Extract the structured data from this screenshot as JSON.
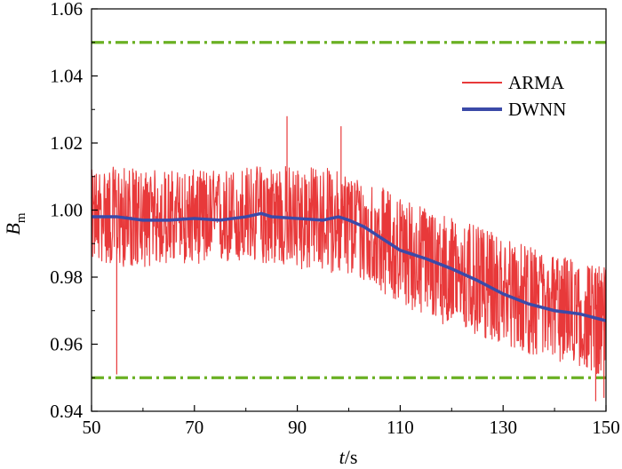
{
  "chart_data": {
    "type": "line",
    "xlabel": {
      "italic": "t",
      "rest": "/s"
    },
    "ylabel": {
      "main": "B",
      "sub": "m"
    },
    "xlim": [
      50,
      150
    ],
    "ylim": [
      0.94,
      1.06
    ],
    "xticks": [
      50,
      70,
      90,
      110,
      130,
      150
    ],
    "xtick_labels": [
      "50",
      "70",
      "90",
      "110",
      "130",
      "150"
    ],
    "yticks": [
      0.94,
      0.96,
      0.98,
      1.0,
      1.02,
      1.04,
      1.06
    ],
    "ytick_labels": [
      "0.94",
      "0.96",
      "0.98",
      "1.00",
      "1.02",
      "1.04",
      "1.06"
    ],
    "grid": false,
    "legend_position": "top-right",
    "thresholds": [
      {
        "y": 1.05,
        "color": "#6ab023",
        "style": "dash-dot"
      },
      {
        "y": 0.95,
        "color": "#6ab023",
        "style": "dash-dot"
      }
    ],
    "series": [
      {
        "name": "ARMA",
        "color": "#e8393a",
        "noisy": true,
        "x": [
          50,
          55,
          60,
          65,
          70,
          75,
          80,
          85,
          90,
          95,
          100,
          105,
          110,
          115,
          120,
          125,
          130,
          135,
          140,
          145,
          150
        ],
        "y": [
          0.998,
          0.998,
          0.996,
          0.997,
          0.997,
          0.997,
          0.997,
          0.998,
          0.997,
          0.997,
          0.996,
          0.993,
          0.988,
          0.985,
          0.982,
          0.979,
          0.976,
          0.973,
          0.971,
          0.969,
          0.967
        ],
        "lower_envelope": [
          0.985,
          0.983,
          0.983,
          0.984,
          0.984,
          0.984,
          0.984,
          0.984,
          0.982,
          0.982,
          0.98,
          0.977,
          0.972,
          0.968,
          0.965,
          0.962,
          0.96,
          0.957,
          0.955,
          0.953,
          0.95
        ],
        "upper_envelope": [
          1.012,
          1.013,
          1.012,
          1.012,
          1.012,
          1.012,
          1.013,
          1.014,
          1.013,
          1.013,
          1.011,
          1.008,
          1.004,
          1.001,
          0.998,
          0.995,
          0.992,
          0.989,
          0.987,
          0.985,
          0.983
        ],
        "extreme_points": [
          {
            "x": 54.9,
            "y": 0.951
          },
          {
            "x": 88.0,
            "y": 1.028
          },
          {
            "x": 98.5,
            "y": 1.025
          },
          {
            "x": 148.0,
            "y": 0.943
          },
          {
            "x": 149.6,
            "y": 0.944
          }
        ]
      },
      {
        "name": "DWNN",
        "color": "#3b4aa8",
        "x": [
          50,
          55,
          60,
          65,
          70,
          75,
          80,
          83,
          85,
          90,
          95,
          98,
          100,
          103,
          105,
          108,
          110,
          115,
          120,
          125,
          130,
          135,
          140,
          145,
          150
        ],
        "y": [
          0.998,
          0.998,
          0.997,
          0.997,
          0.9975,
          0.997,
          0.998,
          0.999,
          0.998,
          0.9975,
          0.997,
          0.998,
          0.997,
          0.995,
          0.993,
          0.99,
          0.988,
          0.9855,
          0.9825,
          0.979,
          0.975,
          0.972,
          0.97,
          0.969,
          0.967
        ]
      }
    ]
  }
}
